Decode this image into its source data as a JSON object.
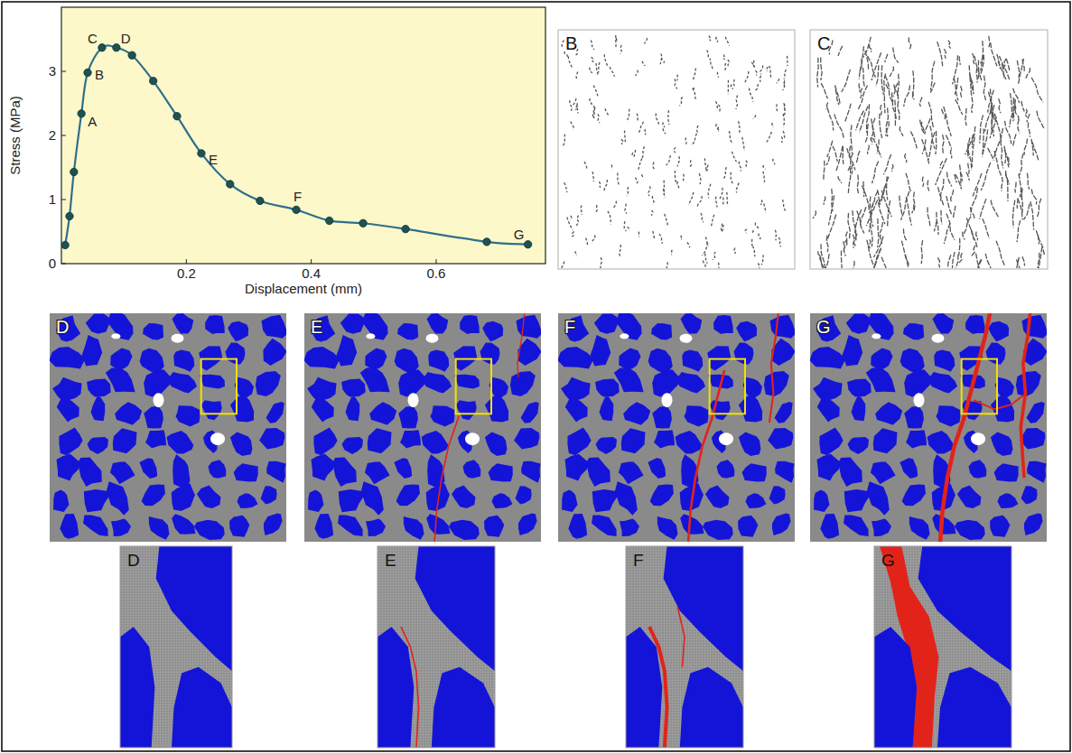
{
  "chart_data": {
    "type": "line",
    "x_label": "Displacement (mm)",
    "y_label": "Stress (MPa)",
    "x": [
      0.006,
      0.013,
      0.02,
      0.032,
      0.042,
      0.065,
      0.088,
      0.113,
      0.147,
      0.185,
      0.224,
      0.27,
      0.318,
      0.376,
      0.429,
      0.483,
      0.551,
      0.681,
      0.747
    ],
    "values": [
      0.29,
      0.74,
      1.43,
      2.34,
      2.98,
      3.37,
      3.37,
      3.25,
      2.85,
      2.3,
      1.72,
      1.24,
      0.98,
      0.84,
      0.67,
      0.63,
      0.54,
      0.34,
      0.3
    ],
    "point_labels": [
      null,
      null,
      null,
      "A",
      "B",
      "C",
      "D",
      null,
      null,
      null,
      "E",
      null,
      null,
      "F",
      null,
      null,
      null,
      null,
      "G"
    ],
    "color": "#2f6f8c",
    "marker": "circle",
    "grid": false,
    "xlim": [
      0,
      0.775
    ],
    "ylim": [
      0,
      4
    ],
    "xticks": [
      0.2,
      0.4,
      0.6
    ],
    "yticks": [
      0,
      1,
      2,
      3
    ]
  },
  "panels": {
    "crack_maps": [
      {
        "label": "B"
      },
      {
        "label": "C"
      }
    ],
    "meso_maps": [
      {
        "label": "D"
      },
      {
        "label": "E"
      },
      {
        "label": "F"
      },
      {
        "label": "G"
      }
    ],
    "zooms": [
      {
        "label": "D"
      },
      {
        "label": "E"
      },
      {
        "label": "F"
      },
      {
        "label": "G"
      }
    ]
  }
}
